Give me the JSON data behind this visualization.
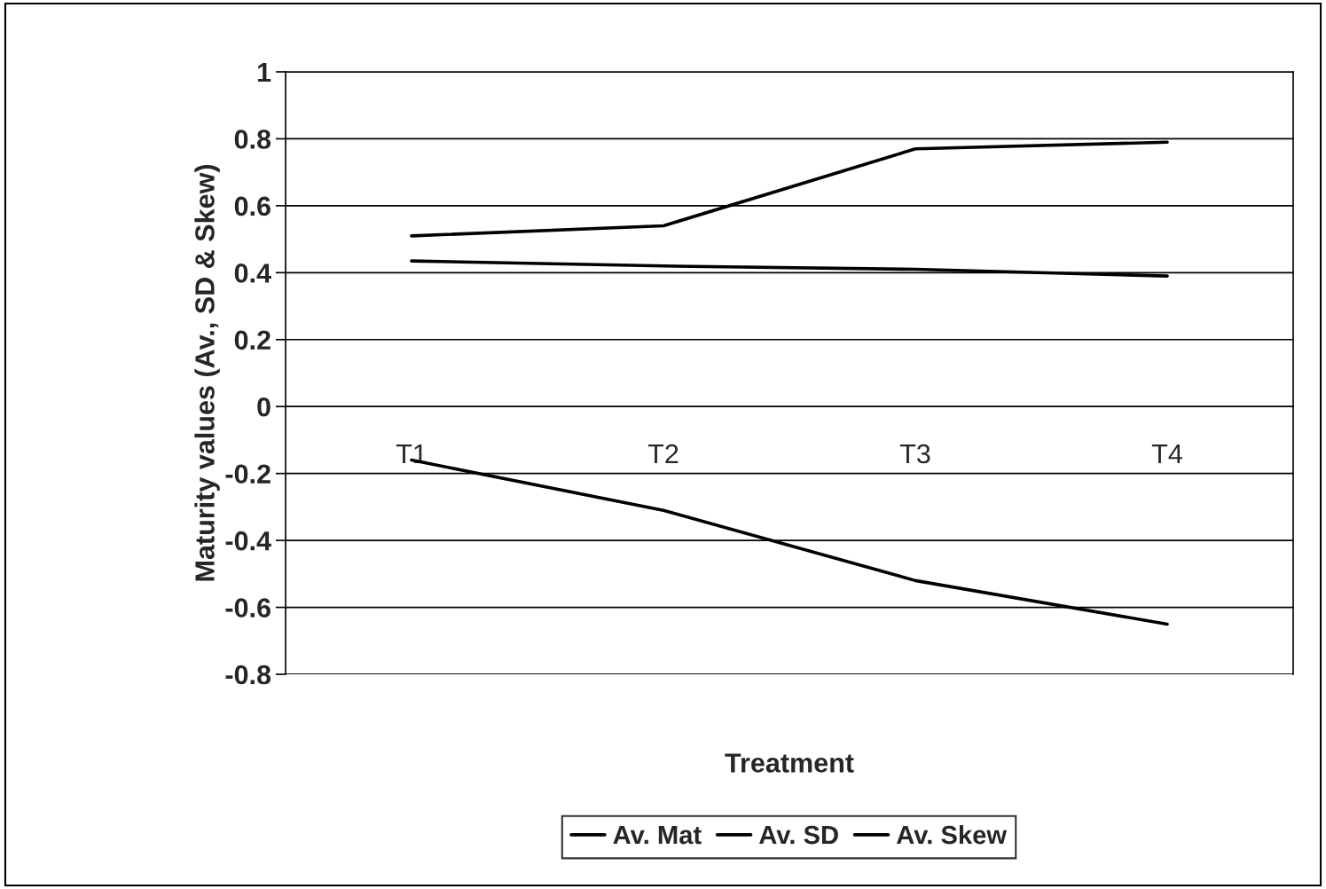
{
  "chart_data": {
    "type": "line",
    "xlabel": "Treatment",
    "ylabel": "Maturity values (Av., SD & Skew)",
    "categories": [
      "T1",
      "T2",
      "T3",
      "T4"
    ],
    "series": [
      {
        "name": "Av. Mat",
        "color": "#000000",
        "values": [
          0.51,
          0.54,
          0.77,
          0.79
        ]
      },
      {
        "name": "Av. SD",
        "color": "#000000",
        "values": [
          0.435,
          0.42,
          0.41,
          0.39
        ]
      },
      {
        "name": "Av. Skew",
        "color": "#000000",
        "values": [
          -0.16,
          -0.31,
          -0.52,
          -0.65
        ]
      }
    ],
    "ylim": [
      -0.8,
      1
    ],
    "yticks": [
      -0.8,
      -0.6,
      -0.4,
      -0.2,
      0,
      0.2,
      0.4,
      0.6,
      0.8,
      1
    ],
    "grid": "y",
    "legend": "bottom",
    "marker": "none",
    "line_style": "solid"
  }
}
